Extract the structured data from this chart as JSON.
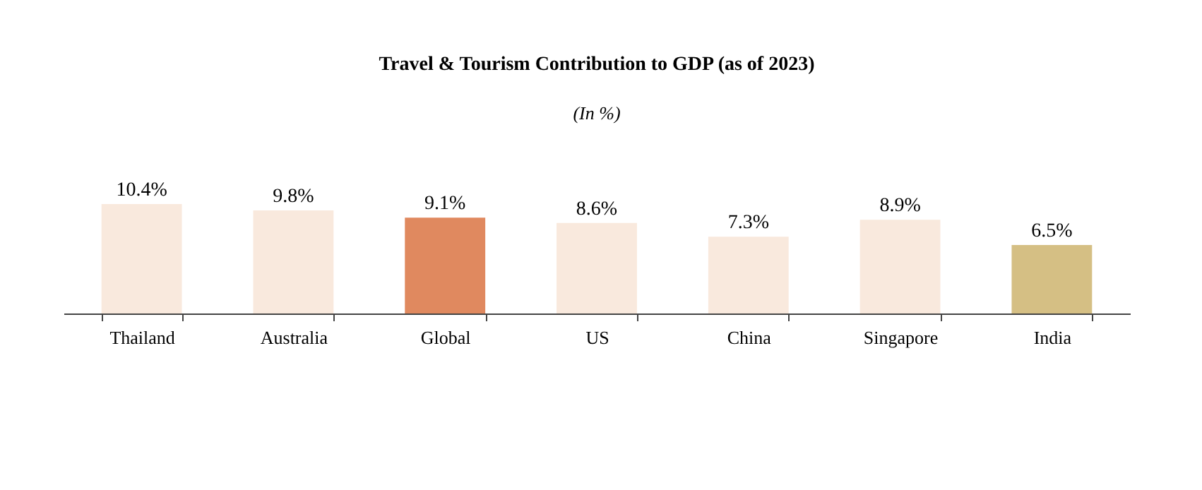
{
  "chart_data": {
    "type": "bar",
    "title": "Travel & Tourism Contribution to GDP (as of 2023)",
    "subtitle": "(In %)",
    "categories": [
      "Thailand",
      "Australia",
      "Global",
      "US",
      "China",
      "Singapore",
      "India"
    ],
    "values": [
      10.4,
      9.8,
      9.1,
      8.6,
      7.3,
      8.9,
      6.5
    ],
    "colors": [
      "#f9e9dd",
      "#f9e9dd",
      "#e0895f",
      "#f9e9dd",
      "#f9e9dd",
      "#f9e9dd",
      "#d5bf84"
    ],
    "value_labels": [
      "10.4%",
      "9.8%",
      "9.1%",
      "8.6%",
      "7.3%",
      "8.9%",
      "6.5%"
    ]
  }
}
